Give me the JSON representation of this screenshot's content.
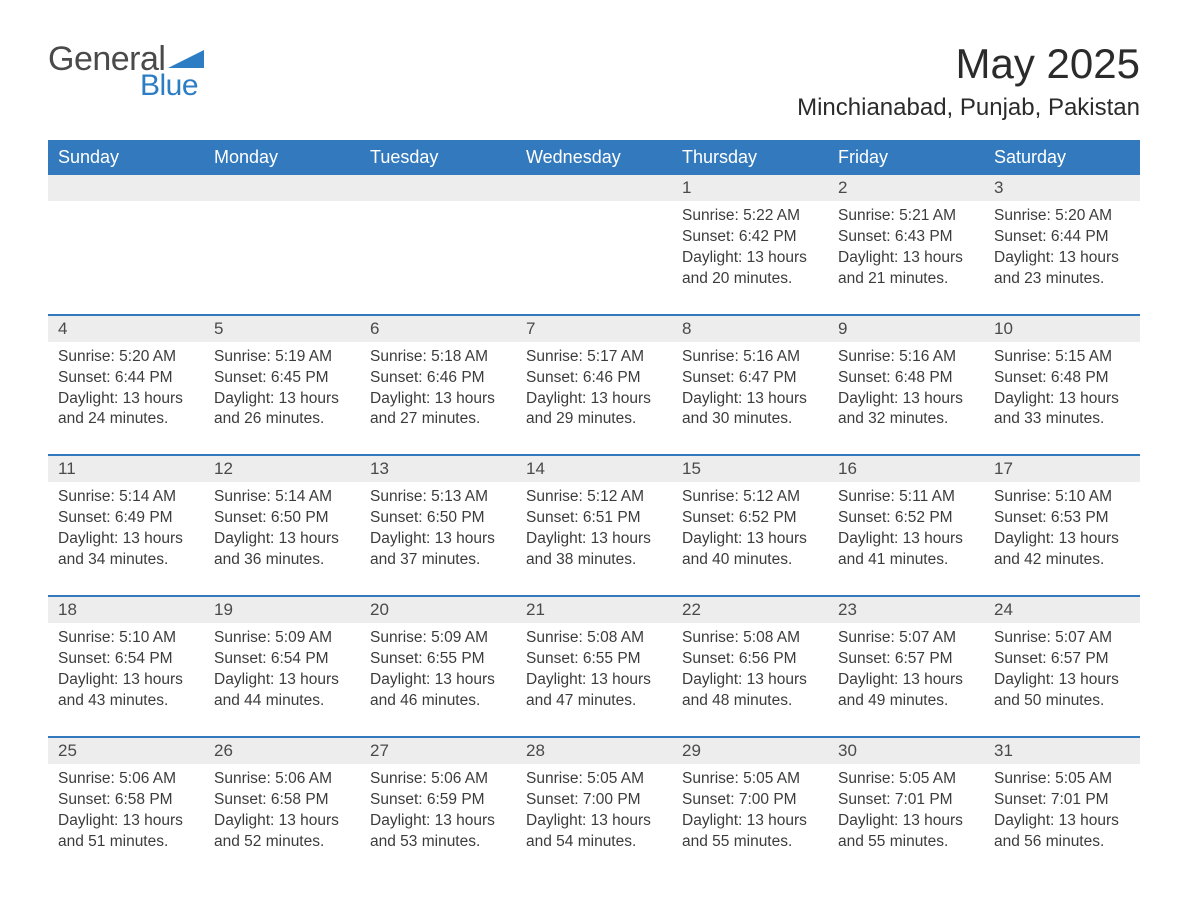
{
  "logo": {
    "text1": "General",
    "text2": "Blue",
    "shape_color": "#2d7dc4"
  },
  "title": "May 2025",
  "location": "Minchianabad, Punjab, Pakistan",
  "colors": {
    "header_bg": "#3279bd",
    "header_text": "#ffffff",
    "daynum_bg": "#ededed",
    "text": "#3c3c3c",
    "row_border": "#3279bd",
    "page_bg": "#ffffff"
  },
  "typography": {
    "title_fontsize": 42,
    "location_fontsize": 24,
    "header_fontsize": 18,
    "daynum_fontsize": 17,
    "body_fontsize": 15.5
  },
  "weekdays": [
    "Sunday",
    "Monday",
    "Tuesday",
    "Wednesday",
    "Thursday",
    "Friday",
    "Saturday"
  ],
  "labels": {
    "sunrise": "Sunrise",
    "sunset": "Sunset",
    "daylight": "Daylight"
  },
  "weeks": [
    [
      {
        "blank": true
      },
      {
        "blank": true
      },
      {
        "blank": true
      },
      {
        "blank": true
      },
      {
        "day": "1",
        "sunrise": "5:22 AM",
        "sunset": "6:42 PM",
        "daylight": "13 hours and 20 minutes."
      },
      {
        "day": "2",
        "sunrise": "5:21 AM",
        "sunset": "6:43 PM",
        "daylight": "13 hours and 21 minutes."
      },
      {
        "day": "3",
        "sunrise": "5:20 AM",
        "sunset": "6:44 PM",
        "daylight": "13 hours and 23 minutes."
      }
    ],
    [
      {
        "day": "4",
        "sunrise": "5:20 AM",
        "sunset": "6:44 PM",
        "daylight": "13 hours and 24 minutes."
      },
      {
        "day": "5",
        "sunrise": "5:19 AM",
        "sunset": "6:45 PM",
        "daylight": "13 hours and 26 minutes."
      },
      {
        "day": "6",
        "sunrise": "5:18 AM",
        "sunset": "6:46 PM",
        "daylight": "13 hours and 27 minutes."
      },
      {
        "day": "7",
        "sunrise": "5:17 AM",
        "sunset": "6:46 PM",
        "daylight": "13 hours and 29 minutes."
      },
      {
        "day": "8",
        "sunrise": "5:16 AM",
        "sunset": "6:47 PM",
        "daylight": "13 hours and 30 minutes."
      },
      {
        "day": "9",
        "sunrise": "5:16 AM",
        "sunset": "6:48 PM",
        "daylight": "13 hours and 32 minutes."
      },
      {
        "day": "10",
        "sunrise": "5:15 AM",
        "sunset": "6:48 PM",
        "daylight": "13 hours and 33 minutes."
      }
    ],
    [
      {
        "day": "11",
        "sunrise": "5:14 AM",
        "sunset": "6:49 PM",
        "daylight": "13 hours and 34 minutes."
      },
      {
        "day": "12",
        "sunrise": "5:14 AM",
        "sunset": "6:50 PM",
        "daylight": "13 hours and 36 minutes."
      },
      {
        "day": "13",
        "sunrise": "5:13 AM",
        "sunset": "6:50 PM",
        "daylight": "13 hours and 37 minutes."
      },
      {
        "day": "14",
        "sunrise": "5:12 AM",
        "sunset": "6:51 PM",
        "daylight": "13 hours and 38 minutes."
      },
      {
        "day": "15",
        "sunrise": "5:12 AM",
        "sunset": "6:52 PM",
        "daylight": "13 hours and 40 minutes."
      },
      {
        "day": "16",
        "sunrise": "5:11 AM",
        "sunset": "6:52 PM",
        "daylight": "13 hours and 41 minutes."
      },
      {
        "day": "17",
        "sunrise": "5:10 AM",
        "sunset": "6:53 PM",
        "daylight": "13 hours and 42 minutes."
      }
    ],
    [
      {
        "day": "18",
        "sunrise": "5:10 AM",
        "sunset": "6:54 PM",
        "daylight": "13 hours and 43 minutes."
      },
      {
        "day": "19",
        "sunrise": "5:09 AM",
        "sunset": "6:54 PM",
        "daylight": "13 hours and 44 minutes."
      },
      {
        "day": "20",
        "sunrise": "5:09 AM",
        "sunset": "6:55 PM",
        "daylight": "13 hours and 46 minutes."
      },
      {
        "day": "21",
        "sunrise": "5:08 AM",
        "sunset": "6:55 PM",
        "daylight": "13 hours and 47 minutes."
      },
      {
        "day": "22",
        "sunrise": "5:08 AM",
        "sunset": "6:56 PM",
        "daylight": "13 hours and 48 minutes."
      },
      {
        "day": "23",
        "sunrise": "5:07 AM",
        "sunset": "6:57 PM",
        "daylight": "13 hours and 49 minutes."
      },
      {
        "day": "24",
        "sunrise": "5:07 AM",
        "sunset": "6:57 PM",
        "daylight": "13 hours and 50 minutes."
      }
    ],
    [
      {
        "day": "25",
        "sunrise": "5:06 AM",
        "sunset": "6:58 PM",
        "daylight": "13 hours and 51 minutes."
      },
      {
        "day": "26",
        "sunrise": "5:06 AM",
        "sunset": "6:58 PM",
        "daylight": "13 hours and 52 minutes."
      },
      {
        "day": "27",
        "sunrise": "5:06 AM",
        "sunset": "6:59 PM",
        "daylight": "13 hours and 53 minutes."
      },
      {
        "day": "28",
        "sunrise": "5:05 AM",
        "sunset": "7:00 PM",
        "daylight": "13 hours and 54 minutes."
      },
      {
        "day": "29",
        "sunrise": "5:05 AM",
        "sunset": "7:00 PM",
        "daylight": "13 hours and 55 minutes."
      },
      {
        "day": "30",
        "sunrise": "5:05 AM",
        "sunset": "7:01 PM",
        "daylight": "13 hours and 55 minutes."
      },
      {
        "day": "31",
        "sunrise": "5:05 AM",
        "sunset": "7:01 PM",
        "daylight": "13 hours and 56 minutes."
      }
    ]
  ]
}
